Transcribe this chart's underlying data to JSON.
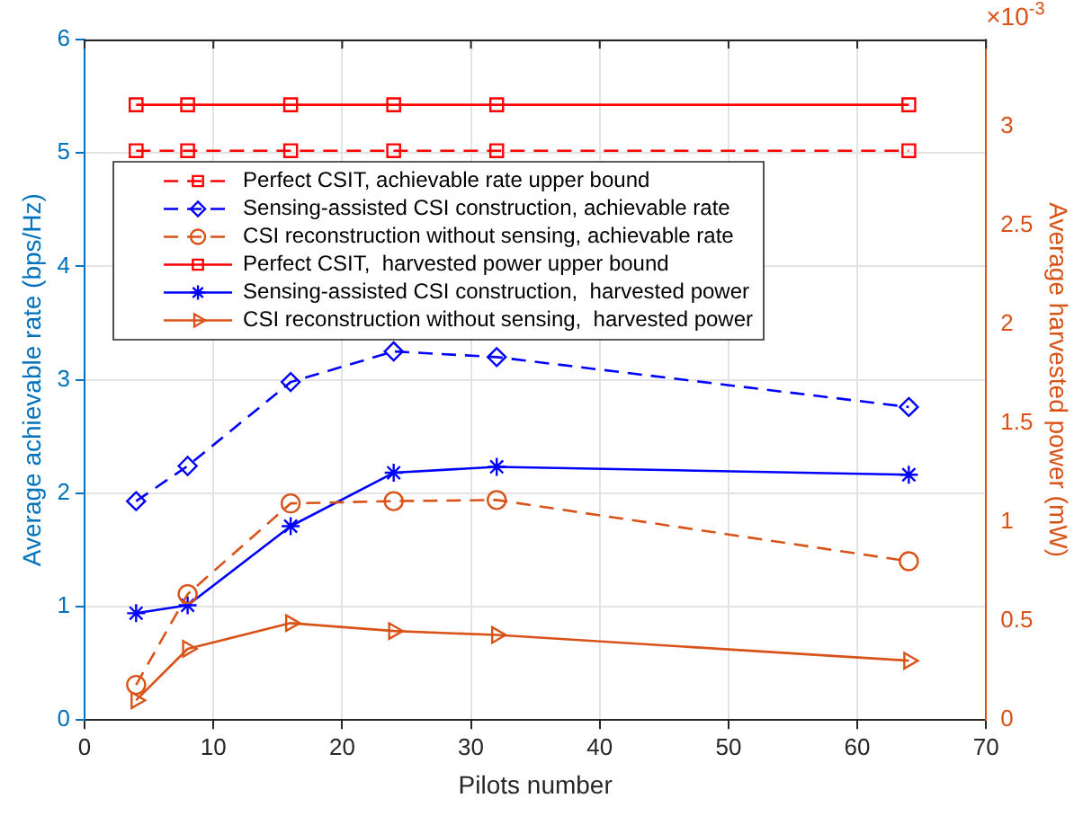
{
  "chart_data": {
    "type": "line",
    "xlabel": "Pilots number",
    "ylabel": "Average achievable rate (bps/Hz)",
    "y2label": "Average harvested power (mW)",
    "x": [
      4,
      8,
      16,
      24,
      32,
      64
    ],
    "series": [
      {
        "name": "Perfect CSIT, achievable rate upper bound",
        "color": "#ff0000",
        "marker": "square",
        "line_style": "dashed",
        "values": [
          5.02,
          5.02,
          5.02,
          5.02,
          5.02,
          5.02
        ]
      },
      {
        "name": "Sensing-assisted CSI construction, achievable rate",
        "color": "#0000ff",
        "marker": "diamond",
        "line_style": "dashed",
        "values": [
          1.93,
          2.24,
          2.98,
          3.25,
          3.2,
          2.76
        ]
      },
      {
        "name": "CSI reconstruction without sensing, achievable rate",
        "color": "#d95319",
        "marker": "circle",
        "line_style": "dashed",
        "values": [
          0.31,
          1.11,
          1.91,
          1.93,
          1.94,
          1.4
        ]
      },
      {
        "name": "Perfect CSIT,  harvested power upper bound",
        "color": "#ff0000",
        "marker": "square",
        "line_style": "solid",
        "axis": "y2",
        "values": [
          3.11,
          3.11,
          3.11,
          3.11,
          3.11,
          3.11
        ]
      },
      {
        "name": "Sensing-assisted CSI construction,  harvested power",
        "color": "#0000ff",
        "marker": "cross",
        "line_style": "solid",
        "axis": "y2",
        "values": [
          0.54,
          0.58,
          0.98,
          1.25,
          1.28,
          1.24
        ]
      },
      {
        "name": "CSI reconstruction without sensing,  harvested power",
        "color": "#d95319",
        "marker": "triangle",
        "line_style": "solid",
        "axis": "y2",
        "values": [
          0.1,
          0.36,
          0.49,
          0.45,
          0.43,
          0.3
        ]
      }
    ],
    "xlim": [
      0,
      70
    ],
    "xticks": [
      0,
      10,
      20,
      30,
      40,
      50,
      60,
      70
    ],
    "ylim": [
      0,
      6
    ],
    "yticks": [
      0,
      1,
      2,
      3,
      4,
      5,
      6
    ],
    "y2lim": [
      0,
      3.44
    ],
    "y2ticks": [
      0,
      0.5,
      1,
      1.5,
      2,
      2.5,
      3
    ],
    "annotations": [
      "×10$^{-3}$"
    ],
    "grid": true,
    "legend": "top left"
  }
}
